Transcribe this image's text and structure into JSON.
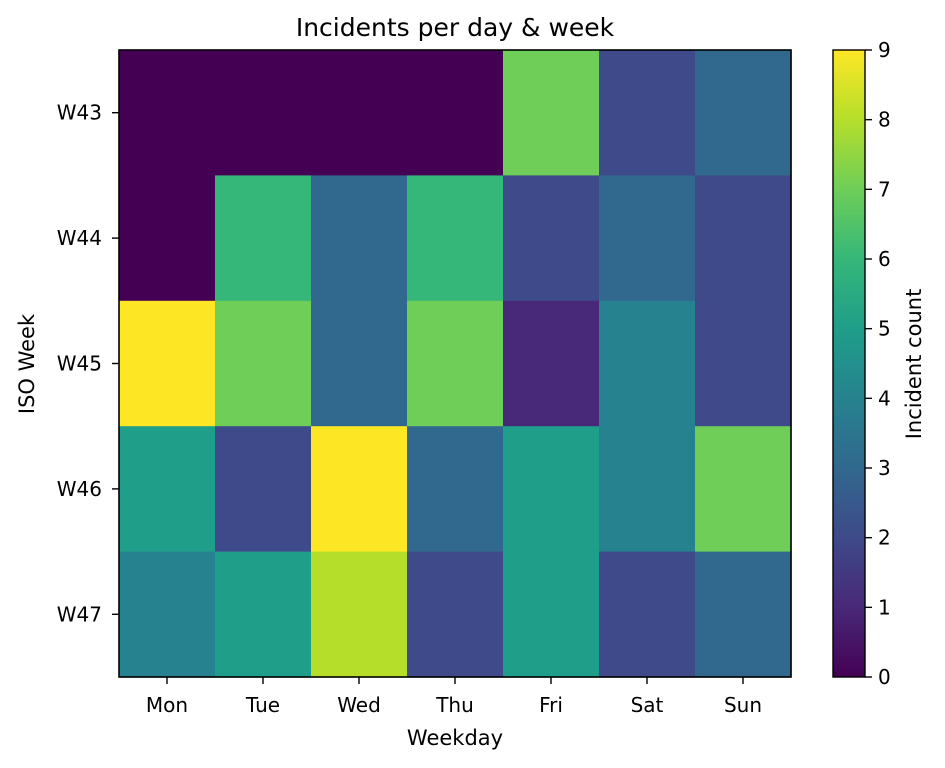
{
  "chart_data": {
    "type": "heatmap",
    "title": "Incidents per day & week",
    "xlabel": "Weekday",
    "ylabel": "ISO Week",
    "x_categories": [
      "Mon",
      "Tue",
      "Wed",
      "Thu",
      "Fri",
      "Sat",
      "Sun"
    ],
    "y_categories": [
      "W43",
      "W44",
      "W45",
      "W46",
      "W47"
    ],
    "values": [
      [
        0,
        0,
        0,
        0,
        7,
        2,
        3
      ],
      [
        0,
        6,
        3,
        6,
        2,
        3,
        2
      ],
      [
        9,
        7,
        3,
        7,
        1,
        4,
        2
      ],
      [
        5,
        2,
        9,
        3,
        5,
        4,
        7
      ],
      [
        4,
        5,
        8,
        2,
        5,
        2,
        3
      ]
    ],
    "colorbar": {
      "label": "Incident count",
      "range": [
        0,
        9
      ],
      "ticks": [
        "0",
        "1",
        "2",
        "3",
        "4",
        "5",
        "6",
        "7",
        "8",
        "9"
      ],
      "colormap": "viridis"
    }
  }
}
